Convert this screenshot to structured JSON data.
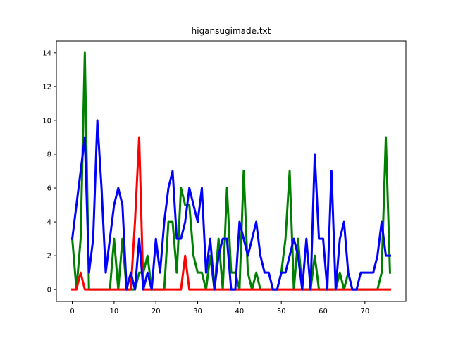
{
  "chart_data": {
    "type": "line",
    "title": "higansugimade.txt",
    "xlabel": "",
    "ylabel": "",
    "xlim": [
      -3.8,
      79.8
    ],
    "ylim": [
      -0.7,
      14.7
    ],
    "grid": false,
    "legend": "none",
    "x_ticks": [
      0,
      10,
      20,
      30,
      40,
      50,
      60,
      70
    ],
    "y_ticks": [
      0,
      2,
      4,
      6,
      8,
      10,
      12,
      14
    ],
    "x": [
      0,
      1,
      2,
      3,
      4,
      5,
      6,
      7,
      8,
      9,
      10,
      11,
      12,
      13,
      14,
      15,
      16,
      17,
      18,
      19,
      20,
      21,
      22,
      23,
      24,
      25,
      26,
      27,
      28,
      29,
      30,
      31,
      32,
      33,
      34,
      35,
      36,
      37,
      38,
      39,
      40,
      41,
      42,
      43,
      44,
      45,
      46,
      47,
      48,
      49,
      50,
      51,
      52,
      53,
      54,
      55,
      56,
      57,
      58,
      59,
      60,
      61,
      62,
      63,
      64,
      65,
      66,
      67,
      68,
      69,
      70,
      71,
      72,
      73,
      74,
      75,
      76
    ],
    "series": [
      {
        "color": "#008000",
        "values": [
          3,
          0,
          3,
          14,
          0,
          0,
          0,
          0,
          0,
          0,
          3,
          0,
          3,
          0,
          0,
          0,
          1,
          1,
          2,
          0,
          0,
          0,
          0,
          4,
          4,
          1,
          6,
          5,
          5,
          2,
          1,
          1,
          0,
          2,
          0,
          3,
          0,
          6,
          1,
          1,
          0,
          7,
          1,
          0,
          1,
          0,
          0,
          0,
          0,
          0,
          1,
          3,
          7,
          0,
          3,
          0,
          0,
          0,
          2,
          0,
          0,
          0,
          0,
          0,
          1,
          0,
          1,
          0,
          0,
          0,
          0,
          0,
          0,
          0,
          1,
          9,
          1
        ]
      },
      {
        "color": "#ff0000",
        "values": [
          0,
          0,
          1,
          0,
          0,
          0,
          0,
          0,
          0,
          0,
          0,
          0,
          0,
          0,
          0,
          4,
          9,
          0,
          0,
          0,
          0,
          0,
          0,
          0,
          0,
          0,
          0,
          2,
          0,
          0,
          0,
          0,
          0,
          0,
          0,
          0,
          0,
          0,
          0,
          0,
          0,
          0,
          0,
          0,
          0,
          0,
          0,
          0,
          0,
          0,
          0,
          0,
          0,
          0,
          0,
          0,
          0,
          0,
          0,
          0,
          0,
          0,
          0,
          0,
          0,
          0,
          0,
          0,
          0,
          0,
          0,
          0,
          0,
          0,
          0,
          0,
          0
        ]
      },
      {
        "color": "#0000ff",
        "values": [
          3,
          5,
          7,
          9,
          1,
          3,
          10,
          6,
          1,
          3,
          5,
          6,
          5,
          0,
          1,
          0,
          3,
          0,
          1,
          0,
          3,
          1,
          4,
          6,
          7,
          3,
          3,
          4,
          6,
          5,
          4,
          6,
          1,
          3,
          0,
          2,
          3,
          3,
          0,
          0,
          4,
          3,
          2,
          3,
          4,
          2,
          1,
          1,
          0,
          0,
          1,
          1,
          2,
          3,
          2,
          0,
          3,
          0,
          8,
          3,
          3,
          0,
          7,
          0,
          3,
          4,
          1,
          0,
          0,
          1,
          1,
          1,
          1,
          2,
          4,
          2,
          2
        ]
      }
    ]
  }
}
